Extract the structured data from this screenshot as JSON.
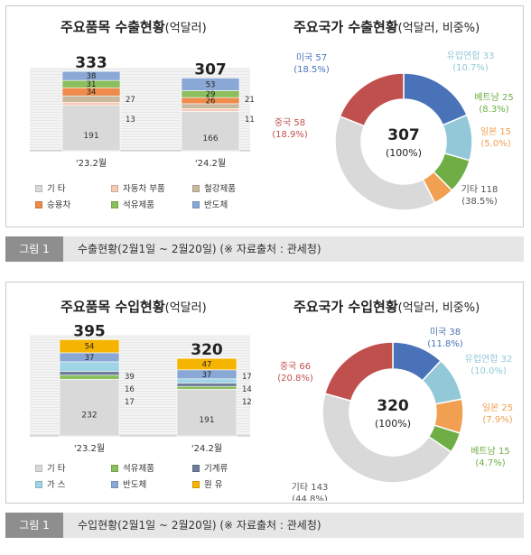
{
  "export": {
    "items_title": "주요품목 수출현황",
    "items_unit": "(억달러)",
    "country_title": "주요국가 수출현황",
    "country_unit": "(억달러, 비중%)",
    "caption_tag": "그림 1",
    "caption_text": "수출현황(2월1일 ~ 2월20일) (※ 자료출처 : 관세청)"
  },
  "import": {
    "items_title": "주요품목 수입현황",
    "items_unit": "(억달러)",
    "country_title": "주요국가 수입현황",
    "country_unit": "(억달러, 비중%)",
    "caption_tag": "그림 1",
    "caption_text": "수입현황(2월1일 ~ 2월20일) (※ 자료출처 : 관세청)"
  },
  "chart_data": [
    {
      "type": "bar",
      "stacked": true,
      "title": "주요품목 수출현황(억달러)",
      "categories": [
        "'23.2월",
        "'24.2월"
      ],
      "totals": [
        333,
        307
      ],
      "series": [
        {
          "name": "기 타",
          "values": [
            191,
            166
          ],
          "color": "#d9d9d9"
        },
        {
          "name": "자동차 부품",
          "values": [
            13,
            11
          ],
          "color": "#f7c9b5"
        },
        {
          "name": "철강제품",
          "values": [
            27,
            21
          ],
          "color": "#c8b89e"
        },
        {
          "name": "승용차",
          "values": [
            34,
            26
          ],
          "color": "#ee8a4a"
        },
        {
          "name": "석유제품",
          "values": [
            31,
            29
          ],
          "color": "#8bbe5c"
        },
        {
          "name": "반도체",
          "values": [
            38,
            53
          ],
          "color": "#8aa8d6"
        }
      ]
    },
    {
      "type": "pie",
      "donut": true,
      "title": "주요국가 수출현황(억달러, 비중%)",
      "center_value": "307",
      "center_pct": "(100%)",
      "slices": [
        {
          "name": "미국",
          "value": 57,
          "pct": "18.5%",
          "color": "#4a72b8"
        },
        {
          "name": "유럽연합",
          "value": 33,
          "pct": "10.7%",
          "color": "#92c8d8"
        },
        {
          "name": "베트남",
          "value": 25,
          "pct": "8.3%",
          "color": "#6eae45"
        },
        {
          "name": "일본",
          "value": 15,
          "pct": "5.0%",
          "color": "#f0a050"
        },
        {
          "name": "기타",
          "value": 118,
          "pct": "38.5%",
          "color": "#d9d9d9"
        },
        {
          "name": "중국",
          "value": 58,
          "pct": "18.9%",
          "color": "#c0504d"
        }
      ]
    },
    {
      "type": "bar",
      "stacked": true,
      "title": "주요품목 수입현황(억달러)",
      "categories": [
        "'23.2월",
        "'24.2월"
      ],
      "totals": [
        395,
        320
      ],
      "series": [
        {
          "name": "기 타",
          "values": [
            232,
            191
          ],
          "color": "#d9d9d9"
        },
        {
          "name": "석유제품",
          "values": [
            17,
            12
          ],
          "color": "#8bbe5c"
        },
        {
          "name": "기계류",
          "values": [
            16,
            14
          ],
          "color": "#6d7d9a"
        },
        {
          "name": "가 스",
          "values": [
            39,
            17
          ],
          "color": "#9fd3e6"
        },
        {
          "name": "반도체",
          "values": [
            37,
            37
          ],
          "color": "#8aa8d6"
        },
        {
          "name": "원 유",
          "values": [
            54,
            47
          ],
          "color": "#f5b400"
        }
      ]
    },
    {
      "type": "pie",
      "donut": true,
      "title": "주요국가 수입현황(억달러, 비중%)",
      "center_value": "320",
      "center_pct": "(100%)",
      "slices": [
        {
          "name": "미국",
          "value": 38,
          "pct": "11.8%",
          "color": "#4a72b8"
        },
        {
          "name": "유럽연합",
          "value": 32,
          "pct": "10.0%",
          "color": "#92c8d8"
        },
        {
          "name": "일본",
          "value": 25,
          "pct": "7.9%",
          "color": "#f0a050"
        },
        {
          "name": "베트남",
          "value": 15,
          "pct": "4.7%",
          "color": "#6eae45"
        },
        {
          "name": "기타",
          "value": 143,
          "pct": "44.8%",
          "color": "#d9d9d9"
        },
        {
          "name": "중국",
          "value": 66,
          "pct": "20.8%",
          "color": "#c0504d"
        }
      ]
    }
  ]
}
